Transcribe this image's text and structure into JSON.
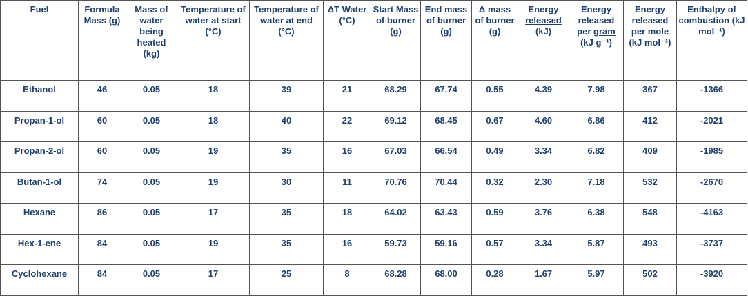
{
  "table": {
    "header": [
      [
        "Fuel"
      ],
      [
        "Formula Mass (g)"
      ],
      [
        "Mass of water being heated (kg)"
      ],
      [
        "Temperature of water at start (°C)"
      ],
      [
        "Temperature of water at end (°C)"
      ],
      [
        "ΔT Water (°C)"
      ],
      [
        "Start Mass of burner (g)"
      ],
      [
        "End mass of burner (g)"
      ],
      [
        "Δ mass of burner (g)"
      ],
      [
        "Energy ",
        {
          "text": "released",
          "underline": true
        },
        " (kJ)"
      ],
      [
        "Energy released per ",
        {
          "text": "gram",
          "underline": true
        },
        " (kJ g⁻¹)"
      ],
      [
        "Energy released per mole (kJ mol⁻¹)"
      ],
      [
        "Enthalpy of combustion (kJ mol⁻¹)"
      ]
    ],
    "rows": [
      [
        "Ethanol",
        "46",
        "0.05",
        "18",
        "39",
        "21",
        "68.29",
        "67.74",
        "0.55",
        "4.39",
        "7.98",
        "367",
        "-1366"
      ],
      [
        "Propan-1-ol",
        "60",
        "0.05",
        "18",
        "40",
        "22",
        "69.12",
        "68.45",
        "0.67",
        "4.60",
        "6.86",
        "412",
        "-2021"
      ],
      [
        "Propan-2-ol",
        "60",
        "0.05",
        "19",
        "35",
        "16",
        "67.03",
        "66.54",
        "0.49",
        "3.34",
        "6.82",
        "409",
        "-1985"
      ],
      [
        "Butan-1-ol",
        "74",
        "0.05",
        "19",
        "30",
        "11",
        "70.76",
        "70.44",
        "0.32",
        "2.30",
        "7.18",
        "532",
        "-2670"
      ],
      [
        "Hexane",
        "86",
        "0.05",
        "17",
        "35",
        "18",
        "64.02",
        "63.43",
        "0.59",
        "3.76",
        "6.38",
        "548",
        "-4163"
      ],
      [
        "Hex-1-ene",
        "84",
        "0.05",
        "19",
        "35",
        "16",
        "59.73",
        "59.16",
        "0.57",
        "3.34",
        "5.87",
        "493",
        "-3737"
      ],
      [
        "Cyclohexane",
        "84",
        "0.05",
        "17",
        "25",
        "8",
        "68.28",
        "68.00",
        "0.28",
        "1.67",
        "5.97",
        "502",
        "-3920"
      ]
    ]
  }
}
